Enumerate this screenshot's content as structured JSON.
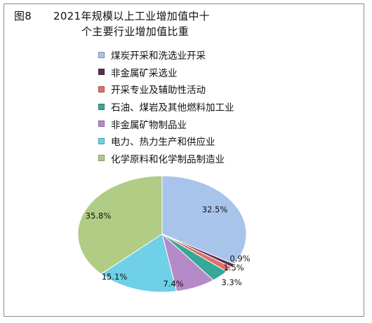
{
  "chart_data": {
    "type": "pie",
    "title_prefix": "图8",
    "title_line1": "2021年规模以上工业增加值中十",
    "title_line2": "个主要行业增加值比重",
    "categories": [
      "煤炭开采和洗选业开采",
      "非金属矿采选业",
      "开采专业及辅助性活动",
      "石油、煤岩及其他燃料加工业",
      "非金属矿物制品业",
      "电力、热力生产和供应业",
      "化学原料和化学制品制造业"
    ],
    "values": [
      32.5,
      0.9,
      1.5,
      3.3,
      7.4,
      15.1,
      35.8
    ],
    "labels": [
      "32.5%",
      "0.9%",
      "1.5%",
      "3.3%",
      "7.4%",
      "15.1%",
      "35.8%"
    ],
    "colors": [
      "#a9c4ea",
      "#5a2e52",
      "#e2706a",
      "#35a898",
      "#b68ac6",
      "#6fd0e8",
      "#b1cc84"
    ],
    "legend_position": "top"
  }
}
